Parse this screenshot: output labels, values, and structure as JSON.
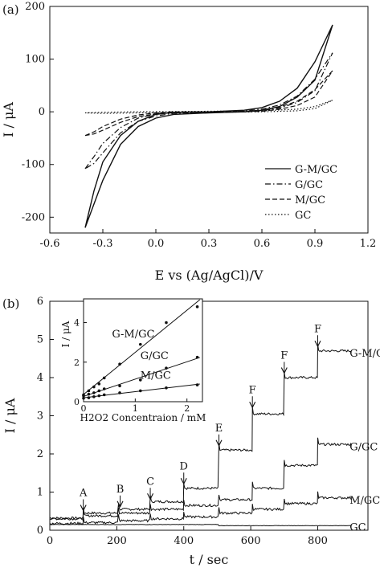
{
  "chart_data": [
    {
      "type": "line",
      "panel_label": "(a)",
      "xlabel": "E vs (Ag/AgCl)/V",
      "ylabel": "I / μA",
      "xlim": [
        -0.6,
        1.2
      ],
      "ylim": [
        -230,
        200
      ],
      "xticks": [
        -0.6,
        -0.3,
        0.0,
        0.3,
        0.6,
        0.9,
        1.2
      ],
      "xtick_labels": [
        "-0.6",
        "-0.3",
        "0.0",
        "0.3",
        "0.6",
        "0.9",
        "1.2"
      ],
      "yticks": [
        -200,
        -100,
        0,
        100,
        200
      ],
      "ytick_labels": [
        "-200",
        "-100",
        "0",
        "100",
        "200"
      ],
      "legend_position": "bottom-right",
      "series": [
        {
          "name": "G-M/GC",
          "style": "solid",
          "upper": [
            [
              -0.4,
              -220
            ],
            [
              -0.35,
              -150
            ],
            [
              -0.3,
              -95
            ],
            [
              -0.2,
              -45
            ],
            [
              -0.1,
              -18
            ],
            [
              0.0,
              -5
            ],
            [
              0.1,
              -1
            ],
            [
              0.3,
              0
            ],
            [
              0.5,
              3
            ],
            [
              0.6,
              8
            ],
            [
              0.7,
              20
            ],
            [
              0.8,
              45
            ],
            [
              0.9,
              95
            ],
            [
              1.0,
              165
            ]
          ],
          "lower": [
            [
              -0.4,
              -220
            ],
            [
              -0.35,
              -175
            ],
            [
              -0.3,
              -130
            ],
            [
              -0.2,
              -62
            ],
            [
              -0.1,
              -28
            ],
            [
              0.0,
              -12
            ],
            [
              0.1,
              -5
            ],
            [
              0.3,
              -2
            ],
            [
              0.5,
              0
            ],
            [
              0.6,
              3
            ],
            [
              0.7,
              10
            ],
            [
              0.8,
              28
            ],
            [
              0.9,
              60
            ],
            [
              1.0,
              165
            ]
          ]
        },
        {
          "name": "G/GC",
          "style": "dashdot",
          "upper": [
            [
              -0.4,
              -108
            ],
            [
              -0.35,
              -85
            ],
            [
              -0.3,
              -60
            ],
            [
              -0.2,
              -30
            ],
            [
              -0.1,
              -12
            ],
            [
              0.0,
              -4
            ],
            [
              0.1,
              -1
            ],
            [
              0.3,
              0
            ],
            [
              0.5,
              2
            ],
            [
              0.6,
              5
            ],
            [
              0.7,
              13
            ],
            [
              0.8,
              30
            ],
            [
              0.9,
              62
            ],
            [
              1.0,
              112
            ]
          ],
          "lower": [
            [
              -0.4,
              -108
            ],
            [
              -0.35,
              -98
            ],
            [
              -0.3,
              -78
            ],
            [
              -0.2,
              -40
            ],
            [
              -0.1,
              -18
            ],
            [
              0.0,
              -8
            ],
            [
              0.1,
              -3
            ],
            [
              0.3,
              -1
            ],
            [
              0.5,
              0
            ],
            [
              0.6,
              2
            ],
            [
              0.7,
              7
            ],
            [
              0.8,
              18
            ],
            [
              0.9,
              40
            ],
            [
              1.0,
              112
            ]
          ]
        },
        {
          "name": "M/GC",
          "style": "dashed",
          "upper": [
            [
              -0.4,
              -45
            ],
            [
              -0.35,
              -38
            ],
            [
              -0.3,
              -28
            ],
            [
              -0.2,
              -14
            ],
            [
              -0.1,
              -6
            ],
            [
              0.0,
              -2
            ],
            [
              0.1,
              0
            ],
            [
              0.3,
              0
            ],
            [
              0.5,
              1
            ],
            [
              0.6,
              3
            ],
            [
              0.7,
              9
            ],
            [
              0.8,
              20
            ],
            [
              0.9,
              42
            ],
            [
              1.0,
              78
            ]
          ],
          "lower": [
            [
              -0.4,
              -45
            ],
            [
              -0.35,
              -42
            ],
            [
              -0.3,
              -35
            ],
            [
              -0.2,
              -20
            ],
            [
              -0.1,
              -9
            ],
            [
              0.0,
              -4
            ],
            [
              0.1,
              -2
            ],
            [
              0.3,
              -1
            ],
            [
              0.5,
              0
            ],
            [
              0.6,
              1
            ],
            [
              0.7,
              5
            ],
            [
              0.8,
              12
            ],
            [
              0.9,
              28
            ],
            [
              1.0,
              78
            ]
          ]
        },
        {
          "name": "GC",
          "style": "dotted",
          "upper": [
            [
              -0.4,
              -2
            ],
            [
              -0.3,
              -1
            ],
            [
              -0.1,
              0
            ],
            [
              0.3,
              1
            ],
            [
              0.6,
              2
            ],
            [
              0.8,
              5
            ],
            [
              0.9,
              10
            ],
            [
              1.0,
              22
            ]
          ],
          "lower": [
            [
              -0.4,
              -2
            ],
            [
              -0.3,
              -3
            ],
            [
              -0.1,
              -2
            ],
            [
              0.3,
              -1
            ],
            [
              0.6,
              0
            ],
            [
              0.8,
              2
            ],
            [
              0.9,
              6
            ],
            [
              1.0,
              22
            ]
          ]
        }
      ]
    },
    {
      "type": "line",
      "panel_label": "(b)",
      "xlabel": "t / sec",
      "ylabel": "I / μA",
      "xlim": [
        0,
        950
      ],
      "ylim": [
        0,
        6
      ],
      "xticks": [
        0,
        200,
        400,
        600,
        800
      ],
      "xtick_labels": [
        "0",
        "200",
        "400",
        "600",
        "800"
      ],
      "yticks": [
        0,
        1,
        2,
        3,
        4,
        5,
        6
      ],
      "ytick_labels": [
        "0",
        "1",
        "2",
        "3",
        "4",
        "5",
        "6"
      ],
      "series": [
        {
          "name": "G-M/GC",
          "steps": [
            [
              0,
              0.32
            ],
            [
              100,
              0.45
            ],
            [
              205,
              0.55
            ],
            [
              300,
              0.75
            ],
            [
              400,
              1.1
            ],
            [
              505,
              2.1
            ],
            [
              605,
              3.05
            ],
            [
              700,
              4.0
            ],
            [
              800,
              4.7
            ],
            [
              900,
              4.65
            ]
          ]
        },
        {
          "name": "G/GC",
          "steps": [
            [
              0,
              0.3
            ],
            [
              100,
              0.38
            ],
            [
              205,
              0.45
            ],
            [
              300,
              0.55
            ],
            [
              400,
              0.65
            ],
            [
              505,
              0.8
            ],
            [
              605,
              1.1
            ],
            [
              700,
              1.7
            ],
            [
              800,
              2.25
            ],
            [
              900,
              2.2
            ]
          ]
        },
        {
          "name": "M/GC",
          "steps": [
            [
              0,
              0.18
            ],
            [
              100,
              0.2
            ],
            [
              205,
              0.25
            ],
            [
              300,
              0.3
            ],
            [
              400,
              0.35
            ],
            [
              505,
              0.45
            ],
            [
              605,
              0.55
            ],
            [
              700,
              0.7
            ],
            [
              800,
              0.85
            ],
            [
              900,
              0.8
            ]
          ]
        },
        {
          "name": "GC",
          "steps": [
            [
              0,
              0.15
            ],
            [
              100,
              0.15
            ],
            [
              205,
              0.15
            ],
            [
              300,
              0.15
            ],
            [
              400,
              0.15
            ],
            [
              505,
              0.12
            ],
            [
              605,
              0.12
            ],
            [
              700,
              0.12
            ],
            [
              800,
              0.12
            ],
            [
              900,
              0.12
            ]
          ]
        }
      ],
      "annotations": [
        {
          "label": "A",
          "x": 100,
          "y": 0.6
        },
        {
          "label": "B",
          "x": 210,
          "y": 0.7
        },
        {
          "label": "C",
          "x": 300,
          "y": 0.9
        },
        {
          "label": "D",
          "x": 400,
          "y": 1.3
        },
        {
          "label": "E",
          "x": 505,
          "y": 2.3
        },
        {
          "label": "F",
          "x": 605,
          "y": 3.3
        },
        {
          "label": "F",
          "x": 700,
          "y": 4.2
        },
        {
          "label": "F",
          "x": 800,
          "y": 4.9
        }
      ],
      "curve_labels": [
        {
          "text": "G-M/GC",
          "x": 905,
          "y": 4.65
        },
        {
          "text": "G/GC",
          "x": 905,
          "y": 2.2
        },
        {
          "text": "M/GC",
          "x": 905,
          "y": 0.8
        },
        {
          "text": "GC",
          "x": 905,
          "y": 0.1
        }
      ],
      "inset": {
        "xlabel": "H2O2 Concentraion / mM",
        "ylabel": "I / μA",
        "xlim": [
          0,
          2.3
        ],
        "ylim": [
          0,
          5.2
        ],
        "xticks": [
          0,
          1,
          2
        ],
        "xtick_labels": [
          "0",
          "1",
          "2"
        ],
        "yticks": [
          0,
          2,
          4
        ],
        "ytick_labels": [
          "0",
          "2",
          "4"
        ],
        "series": [
          {
            "name": "G-M/GC",
            "x": [
              0.0,
              0.1,
              0.2,
              0.3,
              0.4,
              0.7,
              1.1,
              1.6,
              2.2
            ],
            "y": [
              0.35,
              0.55,
              0.75,
              0.9,
              1.2,
              1.9,
              2.9,
              4.0,
              4.8
            ]
          },
          {
            "name": "G/GC",
            "x": [
              0.0,
              0.1,
              0.2,
              0.3,
              0.4,
              0.7,
              1.1,
              1.6,
              2.2
            ],
            "y": [
              0.3,
              0.38,
              0.45,
              0.55,
              0.65,
              0.8,
              1.1,
              1.7,
              2.25
            ]
          },
          {
            "name": "M/GC",
            "x": [
              0.0,
              0.1,
              0.2,
              0.3,
              0.4,
              0.7,
              1.1,
              1.6,
              2.2
            ],
            "y": [
              0.18,
              0.2,
              0.25,
              0.3,
              0.35,
              0.45,
              0.55,
              0.7,
              0.85
            ]
          }
        ],
        "curve_labels": [
          {
            "text": "G-M/GC",
            "x": 0.55,
            "y": 3.25
          },
          {
            "text": "G/GC",
            "x": 1.1,
            "y": 2.15
          },
          {
            "text": "M/GC",
            "x": 1.1,
            "y": 1.15
          }
        ]
      }
    }
  ]
}
